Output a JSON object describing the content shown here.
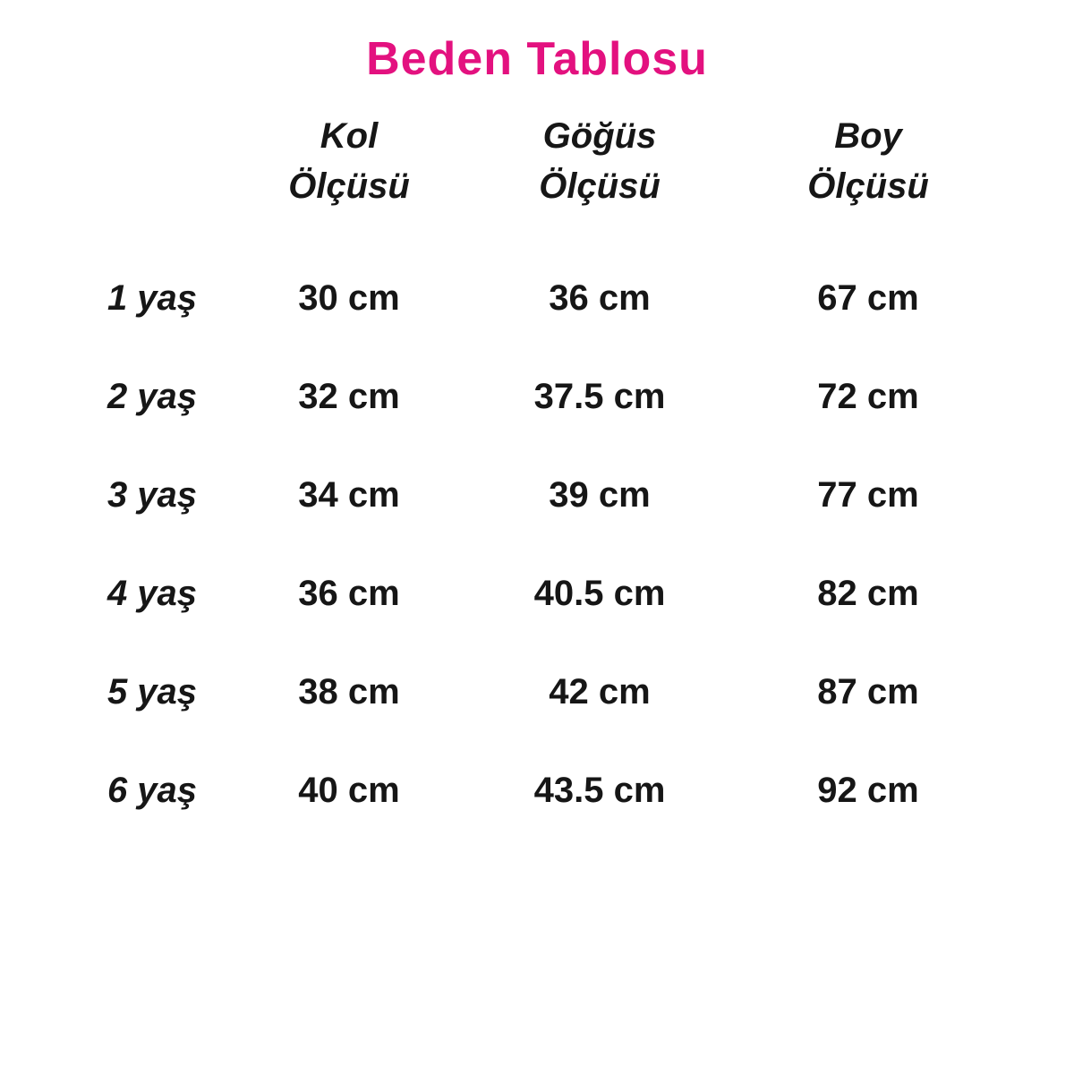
{
  "page": {
    "title_color": "#e3117f",
    "text_color": "#161616",
    "background_color": "#ffffff"
  },
  "chart_data": {
    "type": "table",
    "title": "Beden Tablosu",
    "columns": [
      {
        "line1": "Kol",
        "line2": "Ölçüsü"
      },
      {
        "line1": "Göğüs",
        "line2": "Ölçüsü"
      },
      {
        "line1": "Boy",
        "line2": "Ölçüsü"
      }
    ],
    "unit": "cm",
    "rows": [
      {
        "label": "1 yaş",
        "cells": [
          "30 cm",
          "36 cm",
          "67 cm"
        ]
      },
      {
        "label": "2 yaş",
        "cells": [
          "32 cm",
          "37.5 cm",
          "72 cm"
        ]
      },
      {
        "label": "3 yaş",
        "cells": [
          "34 cm",
          "39 cm",
          "77 cm"
        ]
      },
      {
        "label": "4 yaş",
        "cells": [
          "36 cm",
          "40.5 cm",
          "82 cm"
        ]
      },
      {
        "label": "5 yaş",
        "cells": [
          "38 cm",
          "42 cm",
          "87 cm"
        ]
      },
      {
        "label": "6 yaş",
        "cells": [
          "40 cm",
          "43.5 cm",
          "92 cm"
        ]
      }
    ]
  }
}
